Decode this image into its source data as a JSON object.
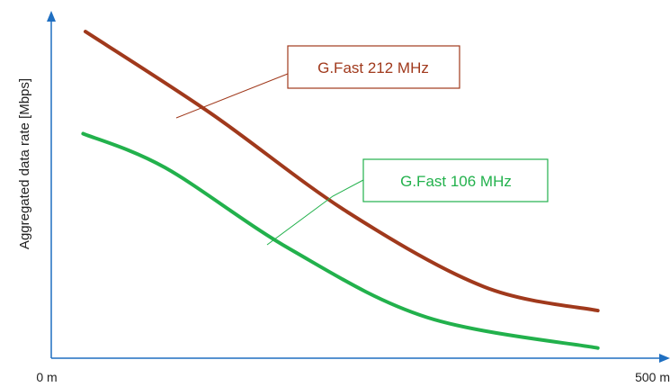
{
  "chart_data": {
    "type": "line",
    "title": "",
    "xlabel": "",
    "ylabel": "Aggregated data rate [Mbps]",
    "x_tick_labels": [
      "0 m",
      "500 m"
    ],
    "xlim": [
      0,
      500
    ],
    "ylim": [
      0,
      1
    ],
    "grid": false,
    "legend": "callouts",
    "series": [
      {
        "name": "G.Fast 212 MHz",
        "color": "#a0391c",
        "x": [
          30,
          140,
          260,
          380,
          480
        ],
        "y": [
          0.96,
          0.72,
          0.43,
          0.21,
          0.14
        ]
      },
      {
        "name": "G.Fast 106 MHz",
        "color": "#22b14c",
        "x": [
          28,
          100,
          210,
          330,
          480
        ],
        "y": [
          0.66,
          0.56,
          0.32,
          0.12,
          0.03
        ]
      }
    ]
  },
  "colors": {
    "axis": "#1f6fc1",
    "text": "#222222"
  }
}
